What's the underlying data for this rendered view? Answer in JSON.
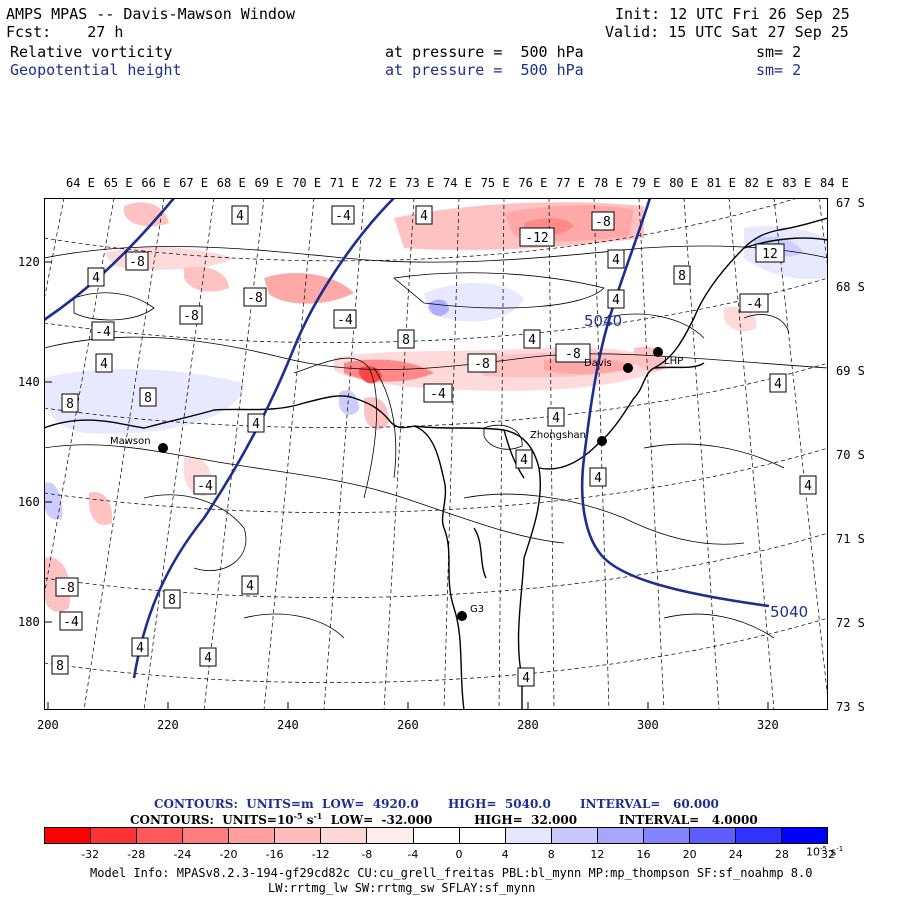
{
  "header": {
    "left_line1": "AMPS MPAS -- Davis-Mawson Window",
    "left_line2": "Fcst:    27 h",
    "right_line1": "Init: 12 UTC Fri 26 Sep 25",
    "right_line2": "Valid: 15 UTC Sat 27 Sep 25",
    "field1_name": "Relative vorticity",
    "field1_level": "at pressure =  500 hPa",
    "field1_sm": "sm= 2",
    "field2_name": "Geopotential height",
    "field2_level": "at pressure =  500 hPa",
    "field2_sm": "sm= 2"
  },
  "top_longitude_labels": [
    "64 E",
    "65 E",
    "66 E",
    "67 E",
    "68 E",
    "69 E",
    "70 E",
    "71 E",
    "72 E",
    "73 E",
    "74 E",
    "75 E",
    "76 E",
    "77 E",
    "78 E",
    "79 E",
    "80 E",
    "81 E",
    "82 E",
    "83 E",
    "84 E"
  ],
  "right_latitude_labels": [
    "67 S",
    "68 S",
    "69 S",
    "70 S",
    "71 S",
    "72 S",
    "73 S"
  ],
  "left_axis_labels": [
    "120",
    "140",
    "160",
    "180"
  ],
  "bottom_axis_labels": [
    "200",
    "220",
    "240",
    "260",
    "280",
    "300",
    "320"
  ],
  "stations": [
    "Mawson",
    "Davis",
    "Zhongshan",
    "LHP",
    "G3"
  ],
  "height_contour_labels": [
    "5040",
    "5040"
  ],
  "legend": {
    "height_line": "CONTOURS:  UNITS=m  LOW=  4920.0       HIGH=  5040.0       INTERVAL=   60.000",
    "vort_line": "CONTOURS:  UNITS=10",
    "vort_exp": "-5",
    "vort_s": " s",
    "vort_sexp": "-1",
    "vort_rest": "  LOW=  -32.000          HIGH=  32.000          INTERVAL=   4.0000"
  },
  "colorbar": {
    "ticks": [
      "-32",
      "-28",
      "-24",
      "-20",
      "-16",
      "-12",
      "-8",
      "-4",
      "0",
      "4",
      "8",
      "12",
      "16",
      "20",
      "24",
      "28",
      "32"
    ],
    "units": "10",
    "units_exp": "-5",
    "units_s": " s",
    "units_sexp": "-1",
    "colors": [
      "#ff0000",
      "#ff3333",
      "#ff5959",
      "#ff7d7d",
      "#ff9f9f",
      "#ffbcbc",
      "#ffd6d6",
      "#ffeded",
      "#ffffff",
      "#ffffff",
      "#e6e6ff",
      "#c8c8ff",
      "#a6a6ff",
      "#8484ff",
      "#5e5eff",
      "#3232ff",
      "#0000ff"
    ]
  },
  "model_info": {
    "line1": "Model Info: MPASv8.2.3-194-gf29cd82c CU:cu_grell_freitas PBL:bl_mynn MP:mp_thompson SF:sf_noahmp 8.0",
    "line2": "LW:rrtmg_lw SW:rrtmg_sw SFLAY:sf_mynn"
  },
  "colors": {
    "height_contour": "#1c2f8f",
    "positive_shade": "#ff7d7d",
    "negative_shade": "#a6a6ff"
  }
}
